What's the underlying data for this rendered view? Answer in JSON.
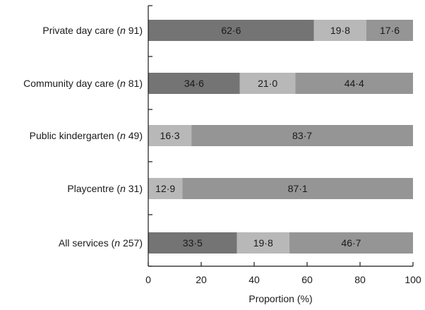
{
  "chart_data": {
    "type": "bar",
    "orientation": "horizontal",
    "stacked": true,
    "categories": [
      {
        "name": "Private day care",
        "n_prefix": "n",
        "n_value": "91"
      },
      {
        "name": "Community day care",
        "n_prefix": "n",
        "n_value": "81"
      },
      {
        "name": "Public kindergarten",
        "n_prefix": "n",
        "n_value": "49"
      },
      {
        "name": "Playcentre",
        "n_prefix": "n",
        "n_value": "31"
      },
      {
        "name": "All services",
        "n_prefix": "n",
        "n_value": "257"
      }
    ],
    "series": [
      {
        "color": "#747474",
        "values": [
          62.6,
          34.6,
          0,
          0,
          33.5
        ],
        "labels": [
          "62·6",
          "34·6",
          "",
          "",
          "33·5"
        ]
      },
      {
        "color": "#b8b8b8",
        "values": [
          19.8,
          21.0,
          16.3,
          12.9,
          19.8
        ],
        "labels": [
          "19·8",
          "21·0",
          "16·3",
          "12·9",
          "19·8"
        ]
      },
      {
        "color": "#959595",
        "values": [
          17.6,
          44.4,
          83.7,
          87.1,
          46.7
        ],
        "labels": [
          "17·6",
          "44·4",
          "83·7",
          "87·1",
          "46·7"
        ]
      }
    ],
    "xlim": [
      0,
      100
    ],
    "xticks": [
      "0",
      "20",
      "40",
      "60",
      "80",
      "100"
    ],
    "xlabel": "Proportion (%)",
    "ylabel": "",
    "title": "",
    "grid": false,
    "legend": "none"
  }
}
